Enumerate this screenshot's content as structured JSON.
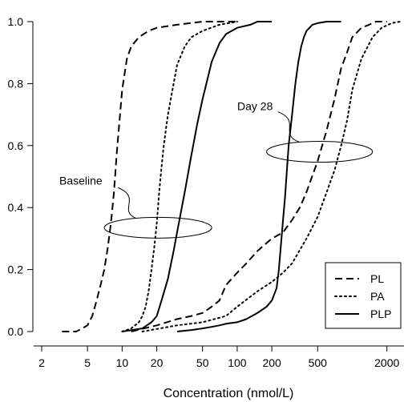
{
  "chart_data": {
    "type": "line",
    "xlabel": "Concentration (nmol/L)",
    "ylabel": "",
    "x_scale": "log",
    "xlim": [
      2,
      3000
    ],
    "ylim": [
      0,
      1.0
    ],
    "x_ticks": [
      2,
      5,
      10,
      20,
      50,
      100,
      200,
      500,
      2000
    ],
    "x_tick_labels": [
      "2",
      "5",
      "10",
      "20",
      "50",
      "100",
      "200",
      "500",
      "2000"
    ],
    "y_ticks": [
      0.0,
      0.2,
      0.4,
      0.6,
      0.8,
      1.0
    ],
    "y_tick_labels": [
      "0.0",
      "0.2",
      "0.4",
      "0.6",
      "0.8",
      "1.0"
    ],
    "grid": false,
    "legend_position": "bottom-right",
    "annotations": [
      {
        "text": "Baseline",
        "group": "baseline"
      },
      {
        "text": "Day 28",
        "group": "day28"
      }
    ],
    "series": [
      {
        "name": "PL",
        "group": "baseline",
        "style": "dashed",
        "x": [
          3,
          4,
          4.5,
          5,
          5.5,
          6,
          6.5,
          7,
          7.5,
          8,
          8.5,
          9,
          10,
          11,
          12,
          14,
          17,
          20,
          30,
          50,
          100
        ],
        "y": [
          0.0,
          0.0,
          0.01,
          0.02,
          0.05,
          0.1,
          0.15,
          0.2,
          0.27,
          0.35,
          0.45,
          0.58,
          0.78,
          0.88,
          0.92,
          0.95,
          0.97,
          0.98,
          0.99,
          1.0,
          1.0
        ]
      },
      {
        "name": "PA",
        "group": "baseline",
        "style": "dotted",
        "x": [
          10,
          12,
          14,
          15,
          16,
          17,
          18,
          19,
          20,
          21,
          22,
          23,
          25,
          28,
          30,
          35,
          40,
          50,
          70,
          100
        ],
        "y": [
          0.0,
          0.01,
          0.03,
          0.05,
          0.08,
          0.13,
          0.2,
          0.27,
          0.35,
          0.45,
          0.53,
          0.6,
          0.7,
          0.8,
          0.86,
          0.92,
          0.95,
          0.97,
          0.99,
          1.0
        ]
      },
      {
        "name": "PLP",
        "group": "baseline",
        "style": "solid",
        "x": [
          10,
          15,
          18,
          20,
          22,
          25,
          28,
          30,
          35,
          40,
          45,
          50,
          60,
          70,
          80,
          100,
          130,
          150,
          200
        ],
        "y": [
          0.0,
          0.01,
          0.03,
          0.05,
          0.1,
          0.17,
          0.26,
          0.32,
          0.45,
          0.57,
          0.67,
          0.75,
          0.87,
          0.93,
          0.96,
          0.98,
          0.99,
          1.0,
          1.0
        ]
      },
      {
        "name": "PL",
        "group": "day28",
        "style": "dashed",
        "x": [
          12,
          20,
          30,
          40,
          50,
          60,
          70,
          80,
          100,
          120,
          150,
          200,
          250,
          300,
          350,
          400,
          500,
          600,
          700,
          800,
          900,
          1000,
          1200,
          1400,
          1600,
          2000
        ],
        "y": [
          0.0,
          0.02,
          0.04,
          0.05,
          0.06,
          0.08,
          0.1,
          0.15,
          0.19,
          0.22,
          0.26,
          0.3,
          0.32,
          0.36,
          0.4,
          0.45,
          0.55,
          0.65,
          0.75,
          0.85,
          0.9,
          0.95,
          0.98,
          0.99,
          1.0,
          1.0
        ]
      },
      {
        "name": "PA",
        "group": "day28",
        "style": "dotted",
        "x": [
          15,
          30,
          50,
          80,
          100,
          150,
          200,
          250,
          300,
          400,
          500,
          600,
          700,
          800,
          900,
          1000,
          1200,
          1500,
          1800,
          2200,
          2600
        ],
        "y": [
          0.0,
          0.02,
          0.03,
          0.05,
          0.08,
          0.13,
          0.16,
          0.19,
          0.22,
          0.3,
          0.37,
          0.45,
          0.52,
          0.6,
          0.68,
          0.78,
          0.88,
          0.95,
          0.98,
          0.995,
          1.0
        ]
      },
      {
        "name": "PLP",
        "group": "day28",
        "style": "solid",
        "x": [
          30,
          40,
          50,
          60,
          70,
          80,
          100,
          120,
          150,
          180,
          200,
          220,
          230,
          240,
          250,
          260,
          270,
          280,
          300,
          320,
          340,
          360,
          380,
          400,
          450,
          500,
          600,
          700,
          800
        ],
        "y": [
          0.0,
          0.005,
          0.01,
          0.015,
          0.02,
          0.025,
          0.03,
          0.04,
          0.06,
          0.08,
          0.1,
          0.14,
          0.2,
          0.28,
          0.36,
          0.43,
          0.52,
          0.6,
          0.7,
          0.8,
          0.87,
          0.92,
          0.95,
          0.97,
          0.99,
          0.995,
          1.0,
          1.0,
          1.0
        ]
      }
    ],
    "legend": [
      {
        "name": "PL",
        "style": "dashed"
      },
      {
        "name": "PA",
        "style": "dotted"
      },
      {
        "name": "PLP",
        "style": "solid"
      }
    ]
  }
}
